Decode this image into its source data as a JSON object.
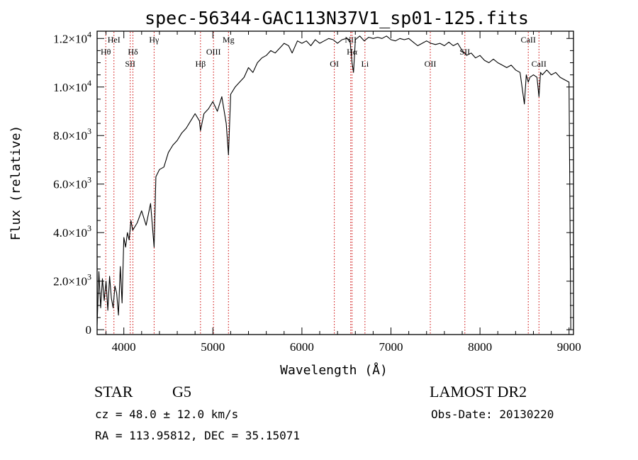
{
  "chart_data": {
    "type": "line",
    "title": "spec-56344-GAC113N37V1_sp01-125.fits",
    "xlabel": "Wavelength (Å)",
    "ylabel": "Flux (relative)",
    "xlim": [
      3700,
      9050
    ],
    "ylim": [
      -200,
      12300
    ],
    "x_ticks": [
      {
        "value": 4000,
        "label": "4000"
      },
      {
        "value": 5000,
        "label": "5000"
      },
      {
        "value": 6000,
        "label": "6000"
      },
      {
        "value": 7000,
        "label": "7000"
      },
      {
        "value": 8000,
        "label": "8000"
      },
      {
        "value": 9000,
        "label": "9000"
      }
    ],
    "y_ticks": [
      {
        "value": 0,
        "mantissa": "0",
        "exponent": ""
      },
      {
        "value": 2000,
        "mantissa": "2.0×10",
        "exponent": "3"
      },
      {
        "value": 4000,
        "mantissa": "4.0×10",
        "exponent": "3"
      },
      {
        "value": 6000,
        "mantissa": "6.0×10",
        "exponent": "3"
      },
      {
        "value": 8000,
        "mantissa": "8.0×10",
        "exponent": "3"
      },
      {
        "value": 10000,
        "mantissa": "1.0×10",
        "exponent": "4"
      },
      {
        "value": 12000,
        "mantissa": "1.2×10",
        "exponent": "4"
      }
    ],
    "line_color": "#000000",
    "marker_color": "#cc0000",
    "series": [
      {
        "name": "flux",
        "x": [
          3700,
          3720,
          3740,
          3760,
          3780,
          3800,
          3820,
          3840,
          3860,
          3880,
          3900,
          3920,
          3940,
          3960,
          3980,
          4000,
          4020,
          4040,
          4060,
          4080,
          4100,
          4150,
          4200,
          4250,
          4300,
          4340,
          4360,
          4400,
          4450,
          4500,
          4550,
          4600,
          4650,
          4700,
          4750,
          4800,
          4850,
          4861,
          4900,
          4950,
          5000,
          5050,
          5100,
          5150,
          5175,
          5200,
          5250,
          5300,
          5350,
          5400,
          5450,
          5500,
          5550,
          5600,
          5650,
          5700,
          5750,
          5800,
          5850,
          5890,
          5950,
          6000,
          6050,
          6100,
          6150,
          6200,
          6250,
          6300,
          6350,
          6400,
          6450,
          6500,
          6540,
          6563,
          6580,
          6600,
          6650,
          6700,
          6750,
          6800,
          6850,
          6900,
          6950,
          7000,
          7050,
          7100,
          7150,
          7200,
          7250,
          7300,
          7350,
          7400,
          7450,
          7500,
          7550,
          7600,
          7650,
          7700,
          7750,
          7800,
          7850,
          7900,
          7950,
          8000,
          8050,
          8100,
          8150,
          8200,
          8250,
          8300,
          8350,
          8400,
          8450,
          8498,
          8520,
          8542,
          8560,
          8600,
          8640,
          8662,
          8680,
          8700,
          8750,
          8800,
          8850,
          8900,
          8950,
          9000,
          9020
        ],
        "y": [
          200,
          2400,
          900,
          2100,
          1200,
          2000,
          800,
          2200,
          1300,
          900,
          1800,
          1500,
          600,
          2600,
          1100,
          3800,
          3400,
          4000,
          3700,
          4500,
          4100,
          4400,
          4900,
          4300,
          5200,
          3400,
          6300,
          6600,
          6700,
          7300,
          7600,
          7800,
          8100,
          8300,
          8600,
          8900,
          8600,
          8200,
          8900,
          9100,
          9400,
          9000,
          9600,
          8500,
          7200,
          9700,
          10000,
          10200,
          10400,
          10800,
          10600,
          11000,
          11200,
          11300,
          11500,
          11400,
          11600,
          11800,
          11700,
          11400,
          11900,
          11800,
          11900,
          11700,
          11950,
          11800,
          11900,
          12000,
          11950,
          11800,
          11950,
          12000,
          11950,
          11000,
          10600,
          11950,
          12100,
          11900,
          12050,
          12000,
          12050,
          12000,
          12100,
          11950,
          11900,
          12000,
          11950,
          12000,
          11850,
          11700,
          11800,
          11900,
          11800,
          11750,
          11800,
          11700,
          11850,
          11700,
          11800,
          11500,
          11300,
          11400,
          11200,
          11300,
          11100,
          11000,
          11150,
          11000,
          10900,
          10800,
          10900,
          10700,
          10600,
          9300,
          10500,
          10200,
          10400,
          10500,
          10400,
          9600,
          10600,
          10500,
          10700,
          10500,
          10600,
          10400,
          10300,
          10200,
          0
        ]
      }
    ],
    "line_markers": [
      {
        "wavelength": 3797,
        "label": "Hθ",
        "row": 1
      },
      {
        "wavelength": 3889,
        "label": "HeI",
        "row": 0
      },
      {
        "wavelength": 4072,
        "label": "SII",
        "row": 2
      },
      {
        "wavelength": 4102,
        "label": "Hδ",
        "row": 1
      },
      {
        "wavelength": 4340,
        "label": "Hγ",
        "row": 0
      },
      {
        "wavelength": 4861,
        "label": "Hβ",
        "row": 2
      },
      {
        "wavelength": 5007,
        "label": "OIII",
        "row": 1
      },
      {
        "wavelength": 5175,
        "label": "Mg",
        "row": 0
      },
      {
        "wavelength": 6364,
        "label": "OI",
        "row": 2
      },
      {
        "wavelength": 6548,
        "label": "NII",
        "row": 0
      },
      {
        "wavelength": 6563,
        "label": "Hα",
        "row": 1
      },
      {
        "wavelength": 6708,
        "label": "Li",
        "row": 2
      },
      {
        "wavelength": 7442,
        "label": "OII",
        "row": 2
      },
      {
        "wavelength": 7830,
        "label": "SII",
        "row": 1
      },
      {
        "wavelength": 8542,
        "label": "CaII",
        "row": 0
      },
      {
        "wavelength": 8662,
        "label": "CaII",
        "row": 2
      }
    ]
  },
  "info": {
    "object_class": "STAR",
    "subclass": "G5",
    "survey": "LAMOST DR2",
    "redshift": "cz = 48.0 ± 12.0 km/s",
    "obs_date": "Obs-Date: 20130220",
    "coordinates": "RA = 113.95812, DEC =  35.15071"
  }
}
